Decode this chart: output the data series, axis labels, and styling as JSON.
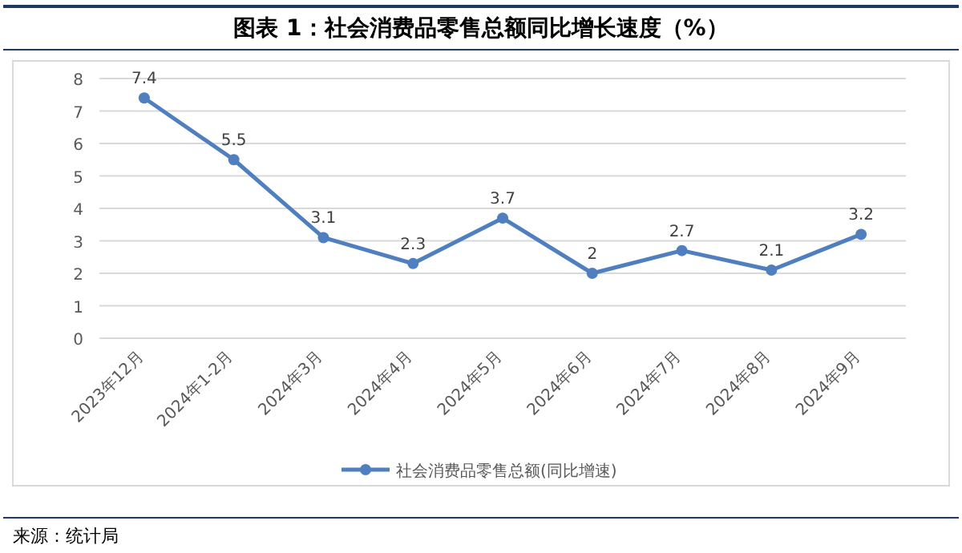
{
  "chart_data": {
    "type": "line",
    "title": "图表 1：社会消费品零售总额同比增长速度（%）",
    "categories": [
      "2023年12月",
      "2024年1-2月",
      "2024年3月",
      "2024年4月",
      "2024年5月",
      "2024年6月",
      "2024年7月",
      "2024年8月",
      "2024年9月"
    ],
    "series": [
      {
        "name": "社会消费品零售总额(同比增速)",
        "color": "#4f7fbf",
        "values": [
          7.4,
          5.5,
          3.1,
          2.3,
          3.7,
          2,
          2.7,
          2.1,
          3.2
        ]
      }
    ],
    "ylim": [
      0,
      8
    ],
    "yticks": [
      0,
      1,
      2,
      3,
      4,
      5,
      6,
      7,
      8
    ],
    "grid": "y",
    "legend": "bottom",
    "marker": "circle",
    "data_labels": true,
    "annotations": [
      "来源：统计局"
    ]
  }
}
